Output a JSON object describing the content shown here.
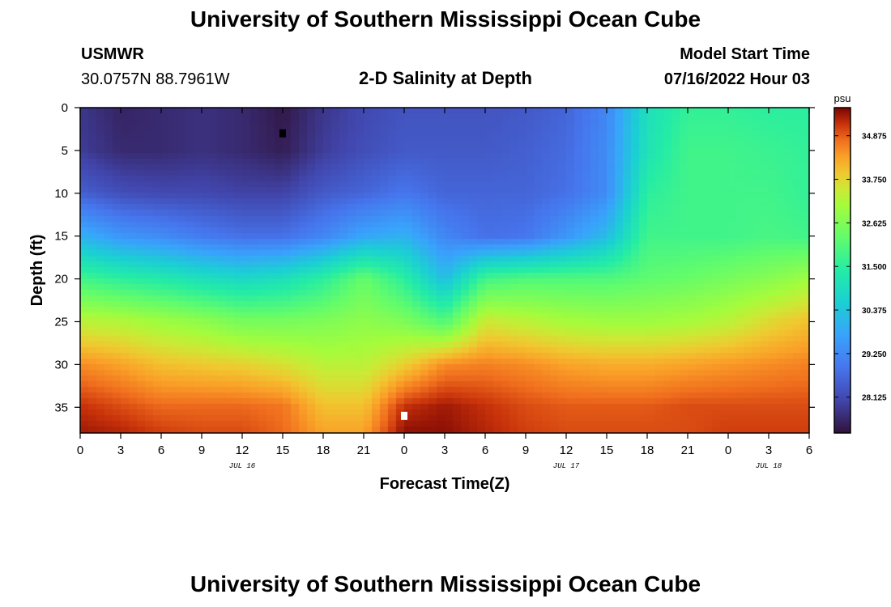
{
  "page": {
    "title_top": "University of Southern Mississippi Ocean Cube",
    "title_bottom": "University of Southern Mississippi Ocean Cube",
    "station_id": "USMWR",
    "coordinates": "30.0757N  88.7961W",
    "start_label": "Model Start Time",
    "start_value": "07/16/2022 Hour 03"
  },
  "chart_data": {
    "type": "heatmap",
    "title": "2-D Salinity at Depth",
    "xlabel": "Forecast Time(Z)",
    "ylabel": "Depth (ft)",
    "xlim": [
      0,
      54
    ],
    "ylim": [
      0,
      38
    ],
    "x_ticks": [
      {
        "pos": 0,
        "label": "0"
      },
      {
        "pos": 3,
        "label": "3"
      },
      {
        "pos": 6,
        "label": "6"
      },
      {
        "pos": 9,
        "label": "9"
      },
      {
        "pos": 12,
        "label": "12"
      },
      {
        "pos": 15,
        "label": "15"
      },
      {
        "pos": 18,
        "label": "18"
      },
      {
        "pos": 21,
        "label": "21"
      },
      {
        "pos": 24,
        "label": "0"
      },
      {
        "pos": 27,
        "label": "3"
      },
      {
        "pos": 30,
        "label": "6"
      },
      {
        "pos": 33,
        "label": "9"
      },
      {
        "pos": 36,
        "label": "12"
      },
      {
        "pos": 39,
        "label": "15"
      },
      {
        "pos": 42,
        "label": "18"
      },
      {
        "pos": 45,
        "label": "21"
      },
      {
        "pos": 48,
        "label": "0"
      },
      {
        "pos": 51,
        "label": "3"
      },
      {
        "pos": 54,
        "label": "6"
      }
    ],
    "date_labels": [
      {
        "pos": 12,
        "label": "JUL 16"
      },
      {
        "pos": 36,
        "label": "JUL 17"
      },
      {
        "pos": 51,
        "label": "JUL 18"
      }
    ],
    "y_ticks": [
      0,
      5,
      10,
      15,
      20,
      25,
      30,
      35
    ],
    "colorbar": {
      "unit": "psu",
      "min": 27.2,
      "max": 35.6,
      "ticks": [
        "34.875",
        "33.750",
        "32.625",
        "31.500",
        "30.375",
        "29.250",
        "28.125"
      ]
    },
    "markers": [
      {
        "name": "min-marker",
        "time": 15,
        "depth": 3,
        "color": "#000000"
      },
      {
        "name": "max-marker",
        "time": 24,
        "depth": 36,
        "color": "#ffffff"
      }
    ],
    "grid_times": [
      0,
      3,
      6,
      9,
      12,
      15,
      18,
      21,
      24,
      27,
      30,
      33,
      36,
      39,
      42,
      45,
      48,
      51,
      54
    ],
    "grid_depths": [
      0,
      5,
      10,
      15,
      20,
      25,
      30,
      35,
      38
    ],
    "salinity": [
      [
        27.8,
        27.5,
        27.6,
        27.7,
        27.6,
        27.3,
        27.8,
        28.1,
        28.3,
        28.3,
        28.3,
        28.4,
        28.6,
        29.2,
        31.0,
        31.6,
        31.6,
        31.5,
        31.5
      ],
      [
        27.9,
        27.6,
        27.6,
        27.7,
        27.6,
        27.4,
        27.9,
        28.2,
        28.4,
        28.4,
        28.4,
        28.5,
        28.7,
        29.3,
        31.1,
        31.8,
        31.8,
        31.7,
        31.6
      ],
      [
        28.5,
        28.2,
        28.1,
        28.1,
        28.0,
        28.0,
        28.4,
        28.6,
        28.9,
        28.6,
        28.6,
        28.6,
        28.8,
        29.3,
        31.5,
        31.8,
        31.8,
        31.8,
        31.6
      ],
      [
        30.0,
        29.5,
        29.3,
        29.0,
        28.8,
        28.8,
        29.2,
        29.8,
        30.0,
        29.2,
        28.8,
        28.9,
        29.5,
        30.2,
        31.8,
        31.8,
        31.8,
        31.9,
        31.8
      ],
      [
        31.8,
        31.5,
        31.3,
        31.0,
        30.8,
        31.0,
        31.5,
        32.3,
        31.5,
        30.2,
        31.8,
        32.0,
        32.0,
        32.0,
        32.2,
        32.3,
        32.5,
        32.7,
        33.0
      ],
      [
        33.3,
        33.2,
        33.0,
        32.8,
        32.5,
        32.5,
        32.6,
        32.8,
        32.6,
        32.0,
        33.5,
        33.3,
        33.1,
        33.0,
        33.0,
        33.1,
        33.3,
        33.7,
        34.0
      ],
      [
        34.5,
        34.3,
        34.0,
        33.9,
        33.8,
        33.6,
        33.3,
        33.3,
        33.8,
        34.5,
        34.6,
        34.5,
        34.3,
        34.2,
        34.2,
        34.3,
        34.4,
        34.5,
        34.6
      ],
      [
        35.2,
        35.0,
        34.8,
        34.8,
        34.8,
        34.7,
        34.0,
        34.0,
        35.2,
        35.4,
        35.2,
        35.0,
        34.9,
        34.9,
        34.9,
        35.0,
        35.0,
        35.0,
        35.0
      ],
      [
        35.4,
        35.3,
        35.1,
        35.0,
        35.0,
        34.8,
        34.3,
        34.3,
        35.5,
        35.5,
        35.3,
        35.1,
        35.0,
        35.0,
        35.0,
        35.0,
        35.1,
        35.1,
        35.1
      ]
    ]
  }
}
